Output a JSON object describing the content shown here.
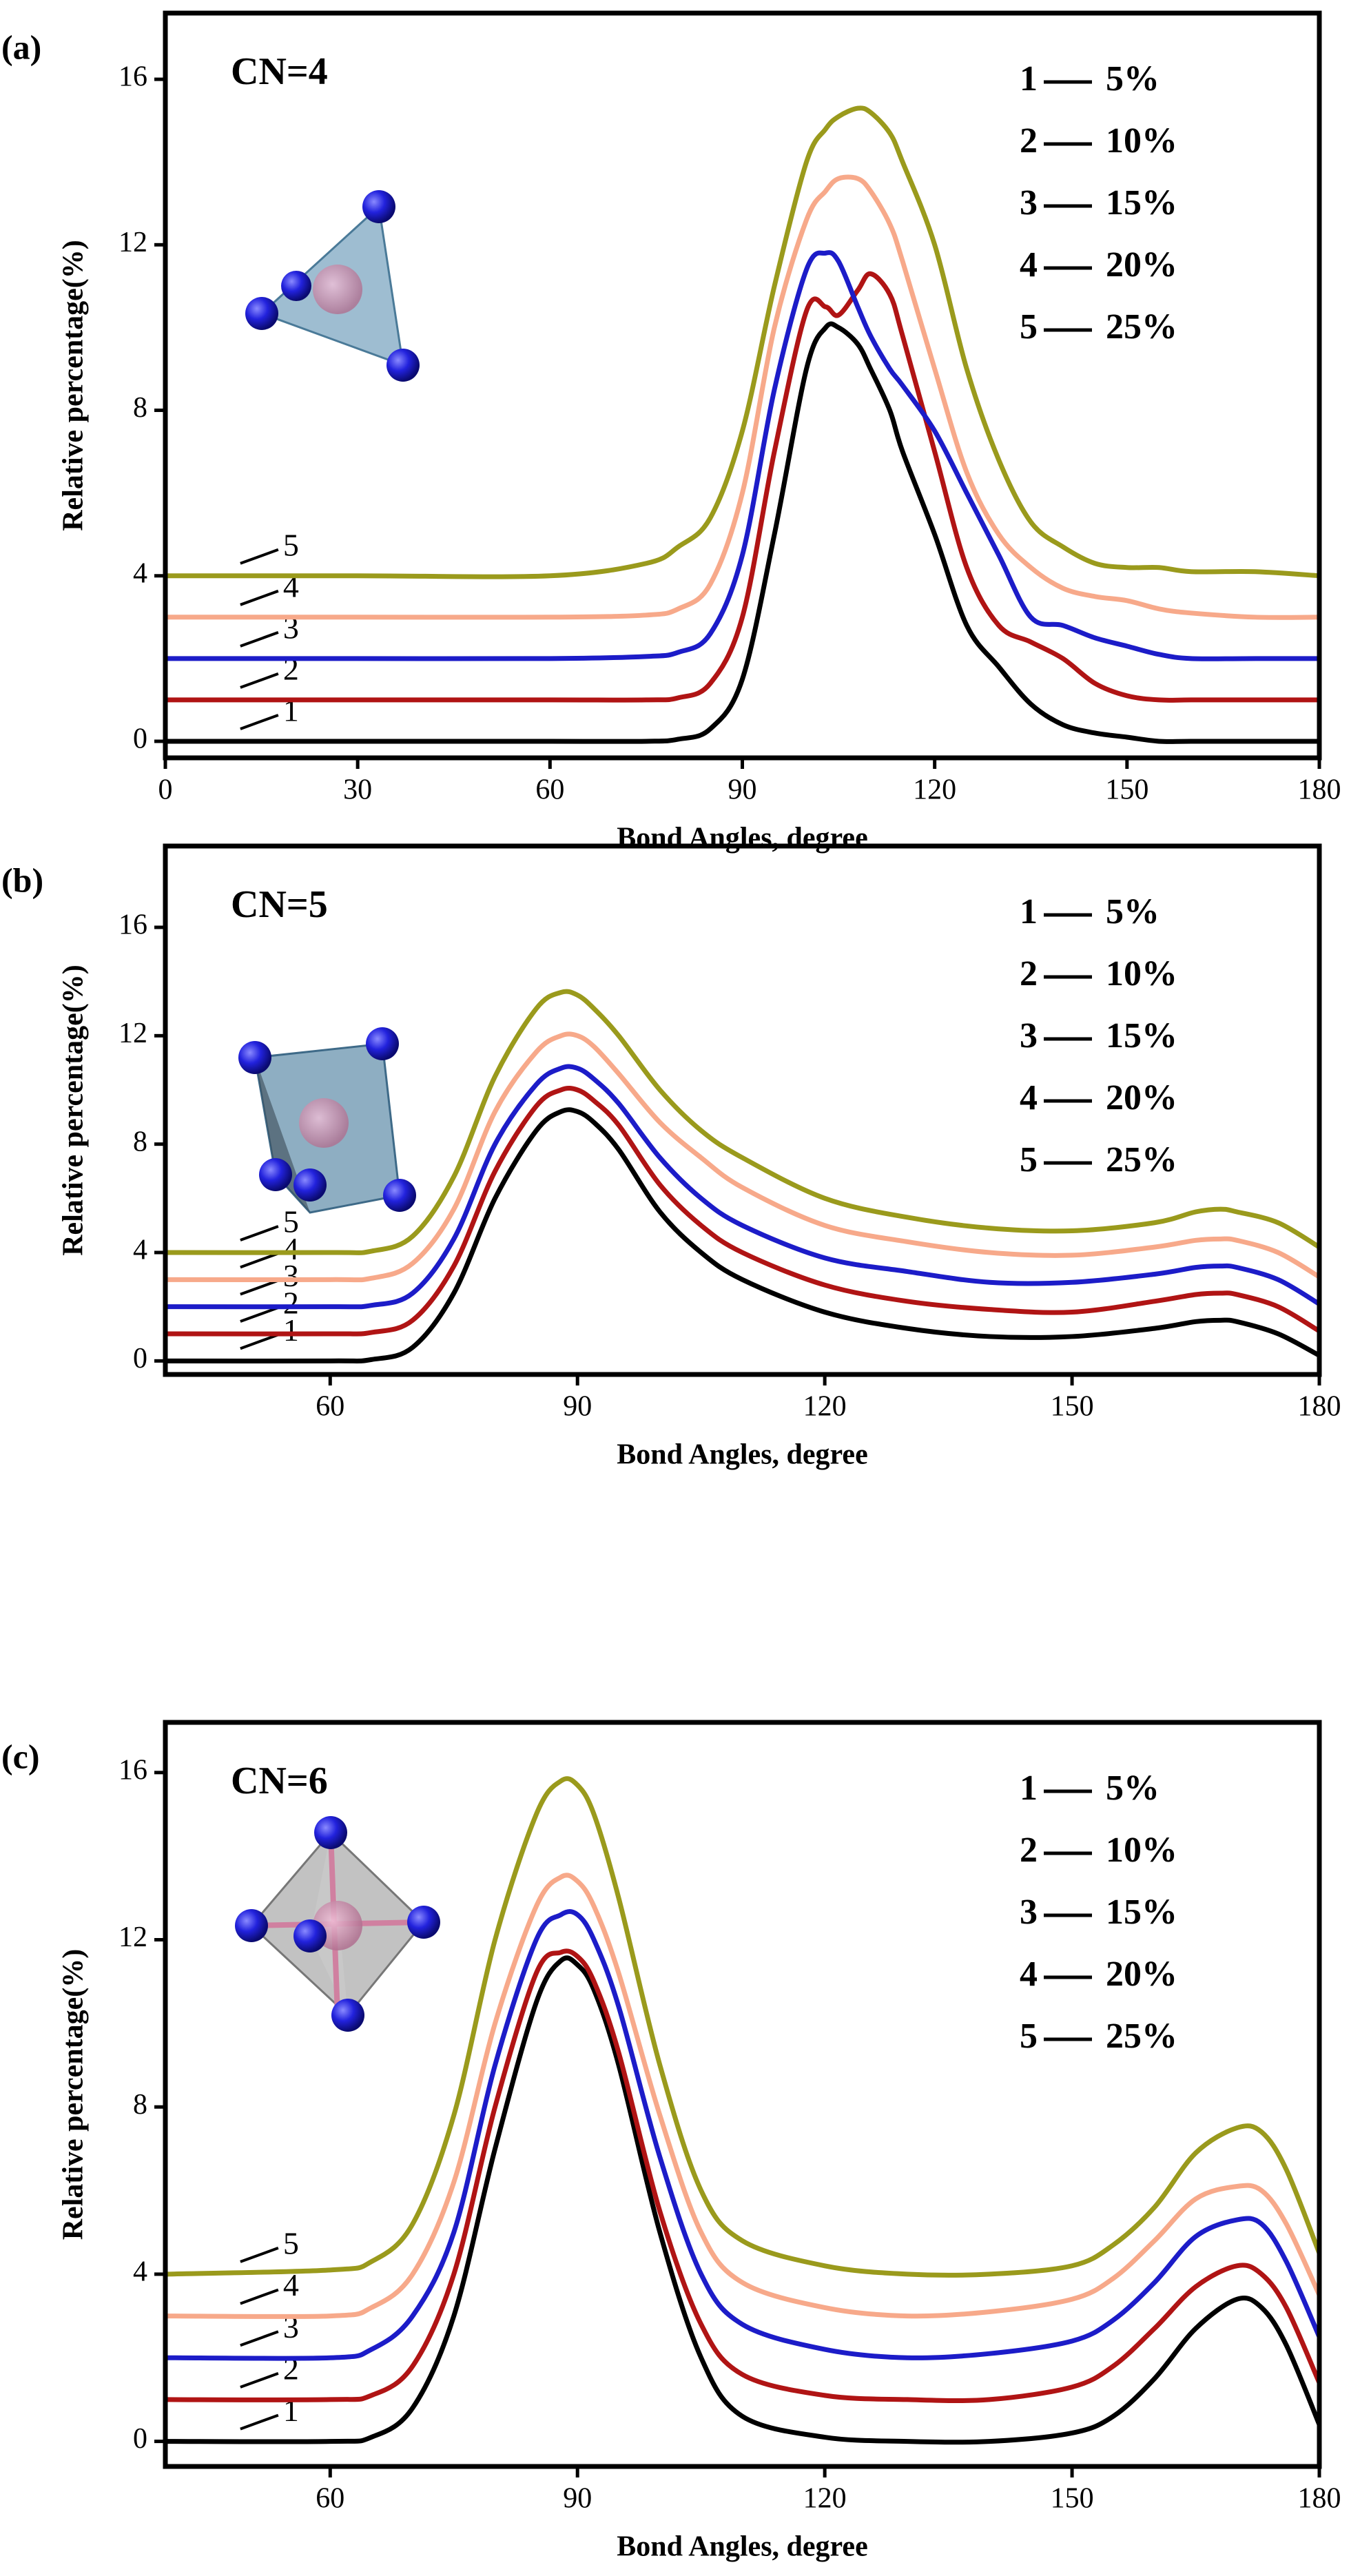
{
  "chart_data": [
    {
      "type": "line",
      "panel_label": "(a)",
      "title": "CN=4",
      "xlabel": "Bond Angles, degree",
      "ylabel": "Relative percentage(%)",
      "xlim": [
        0,
        180
      ],
      "ylim": [
        -0.4,
        17.6
      ],
      "xticks": [
        0,
        30,
        60,
        90,
        120,
        150,
        180
      ],
      "yticks": [
        0,
        4,
        8,
        12,
        16
      ],
      "x": [
        0,
        30,
        60,
        75,
        80,
        85,
        90,
        95,
        100,
        103,
        105,
        108,
        110,
        113,
        115,
        120,
        125,
        130,
        135,
        140,
        145,
        150,
        155,
        160,
        170,
        180
      ],
      "series": [
        {
          "name": "5%",
          "label": "1",
          "color": "#000000",
          "values": [
            0,
            0,
            0,
            0,
            0.05,
            0.3,
            1.5,
            5,
            9,
            10,
            10,
            9.6,
            9,
            8,
            7,
            5,
            2.8,
            1.8,
            0.9,
            0.4,
            0.2,
            0.1,
            0,
            0,
            0,
            0
          ]
        },
        {
          "name": "10%",
          "label": "2",
          "color": "#b01414",
          "values": [
            1,
            1,
            1,
            1,
            1.05,
            1.4,
            3,
            7,
            10.4,
            10.5,
            10.3,
            10.9,
            11.3,
            10.8,
            9.8,
            7,
            4.2,
            2.8,
            2.4,
            2,
            1.4,
            1.1,
            1,
            1,
            1,
            1
          ]
        },
        {
          "name": "15%",
          "label": "3",
          "color": "#1c1cc8",
          "values": [
            2,
            2,
            2,
            2.05,
            2.15,
            2.6,
            4.5,
            8.5,
            11.4,
            11.8,
            11.6,
            10.5,
            9.8,
            9,
            8.6,
            7.5,
            6,
            4.5,
            3,
            2.8,
            2.5,
            2.3,
            2.1,
            2,
            2,
            2
          ]
        },
        {
          "name": "20%",
          "label": "4",
          "color": "#f7a98a",
          "values": [
            3,
            3,
            3,
            3.05,
            3.2,
            3.8,
            6,
            10,
            12.6,
            13.3,
            13.6,
            13.6,
            13.3,
            12.5,
            11.6,
            9,
            6.5,
            5,
            4.2,
            3.7,
            3.5,
            3.4,
            3.2,
            3.1,
            3,
            3
          ]
        },
        {
          "name": "25%",
          "label": "5",
          "color": "#9a9a1c",
          "values": [
            4,
            4,
            4,
            4.3,
            4.7,
            5.4,
            7.5,
            11,
            14,
            14.8,
            15.1,
            15.3,
            15.2,
            14.7,
            14,
            12,
            9,
            6.8,
            5.3,
            4.7,
            4.3,
            4.2,
            4.2,
            4.1,
            4.1,
            4
          ]
        }
      ]
    },
    {
      "type": "line",
      "panel_label": "(b)",
      "title": "CN=5",
      "xlabel": "Bond Angles, degree",
      "ylabel": "Relative percentage(%)",
      "xlim": [
        40,
        180
      ],
      "ylim": [
        -0.5,
        19
      ],
      "xticks": [
        60,
        90,
        120,
        150,
        180
      ],
      "yticks": [
        0,
        4,
        8,
        12,
        16
      ],
      "x": [
        40,
        60,
        65,
        70,
        75,
        80,
        85,
        88,
        90,
        92,
        95,
        100,
        105,
        110,
        120,
        130,
        140,
        150,
        160,
        165,
        168,
        170,
        175,
        180
      ],
      "series": [
        {
          "name": "5%",
          "label": "1",
          "color": "#000000",
          "values": [
            0,
            0,
            0.05,
            0.5,
            2.5,
            6,
            8.5,
            9.2,
            9.2,
            8.8,
            7.8,
            5.5,
            4,
            3,
            1.8,
            1.2,
            0.9,
            0.9,
            1.2,
            1.45,
            1.5,
            1.45,
            1,
            0.2
          ]
        },
        {
          "name": "10%",
          "label": "2",
          "color": "#b01414",
          "values": [
            1,
            1,
            1.05,
            1.5,
            3.5,
            7,
            9.4,
            10,
            10,
            9.6,
            8.7,
            6.5,
            5,
            4,
            2.8,
            2.2,
            1.9,
            1.8,
            2.2,
            2.45,
            2.5,
            2.45,
            2,
            1.1
          ]
        },
        {
          "name": "15%",
          "label": "3",
          "color": "#1c1cc8",
          "values": [
            2,
            2,
            2.05,
            2.5,
            4.5,
            8,
            10.2,
            10.8,
            10.8,
            10.4,
            9.5,
            7.5,
            6,
            5,
            3.8,
            3.3,
            2.9,
            2.9,
            3.2,
            3.45,
            3.5,
            3.45,
            3,
            2.1
          ]
        },
        {
          "name": "20%",
          "label": "4",
          "color": "#f7a98a",
          "values": [
            3,
            3,
            3.05,
            3.6,
            5.6,
            9.2,
            11.4,
            12,
            12,
            11.6,
            10.6,
            8.8,
            7.5,
            6.4,
            5,
            4.4,
            4,
            3.9,
            4.2,
            4.45,
            4.5,
            4.45,
            4,
            3.1
          ]
        },
        {
          "name": "25%",
          "label": "5",
          "color": "#9a9a1c",
          "values": [
            4,
            4,
            4.05,
            4.6,
            6.8,
            10.5,
            13,
            13.6,
            13.5,
            13,
            12,
            10,
            8.5,
            7.5,
            6,
            5.3,
            4.9,
            4.8,
            5.1,
            5.5,
            5.6,
            5.5,
            5.1,
            4.2
          ]
        }
      ]
    },
    {
      "type": "line",
      "panel_label": "(c)",
      "title": "CN=6",
      "xlabel": "Bond Angles, degree",
      "ylabel": "Relative percentage(%)",
      "xlim": [
        40,
        180
      ],
      "ylim": [
        -0.6,
        17.2
      ],
      "xticks": [
        60,
        90,
        120,
        150,
        180
      ],
      "yticks": [
        0,
        4,
        8,
        12,
        16
      ],
      "x": [
        40,
        60,
        65,
        70,
        75,
        80,
        85,
        88,
        90,
        92,
        95,
        100,
        105,
        110,
        120,
        130,
        140,
        150,
        155,
        160,
        165,
        170,
        173,
        176,
        180
      ],
      "series": [
        {
          "name": "5%",
          "label": "1",
          "color": "#000000",
          "values": [
            0,
            0,
            0.1,
            0.8,
            3,
            7,
            10.5,
            11.5,
            11.4,
            10.8,
            9,
            5,
            2,
            0.6,
            0.1,
            0,
            0,
            0.2,
            0.6,
            1.5,
            2.7,
            3.4,
            3.2,
            2.3,
            0.4
          ]
        },
        {
          "name": "10%",
          "label": "2",
          "color": "#b01414",
          "values": [
            1,
            1,
            1.1,
            1.8,
            4,
            8,
            11.2,
            11.7,
            11.6,
            11,
            9.3,
            5.5,
            2.8,
            1.6,
            1.1,
            1,
            1,
            1.3,
            1.8,
            2.7,
            3.7,
            4.2,
            4,
            3.2,
            1.4
          ]
        },
        {
          "name": "15%",
          "label": "3",
          "color": "#1c1cc8",
          "values": [
            2,
            2,
            2.2,
            3,
            5,
            9,
            12,
            12.6,
            12.6,
            12,
            10.4,
            6.8,
            4,
            2.8,
            2.2,
            2,
            2.1,
            2.4,
            2.9,
            3.8,
            4.9,
            5.3,
            5.2,
            4.3,
            2.5
          ]
        },
        {
          "name": "20%",
          "label": "4",
          "color": "#f7a98a",
          "values": [
            3,
            3,
            3.2,
            4,
            6.2,
            10,
            12.8,
            13.5,
            13.4,
            12.8,
            11.2,
            7.8,
            5,
            3.8,
            3.2,
            3,
            3.1,
            3.4,
            3.9,
            4.8,
            5.8,
            6.1,
            6,
            5.2,
            3.5
          ]
        },
        {
          "name": "25%",
          "label": "5",
          "color": "#9a9a1c",
          "values": [
            4,
            4.1,
            4.3,
            5.2,
            7.8,
            12,
            15,
            15.8,
            15.7,
            15,
            13,
            9,
            6,
            4.8,
            4.2,
            4,
            4,
            4.2,
            4.7,
            5.6,
            6.9,
            7.5,
            7.4,
            6.5,
            4.5
          ]
        }
      ]
    }
  ]
}
